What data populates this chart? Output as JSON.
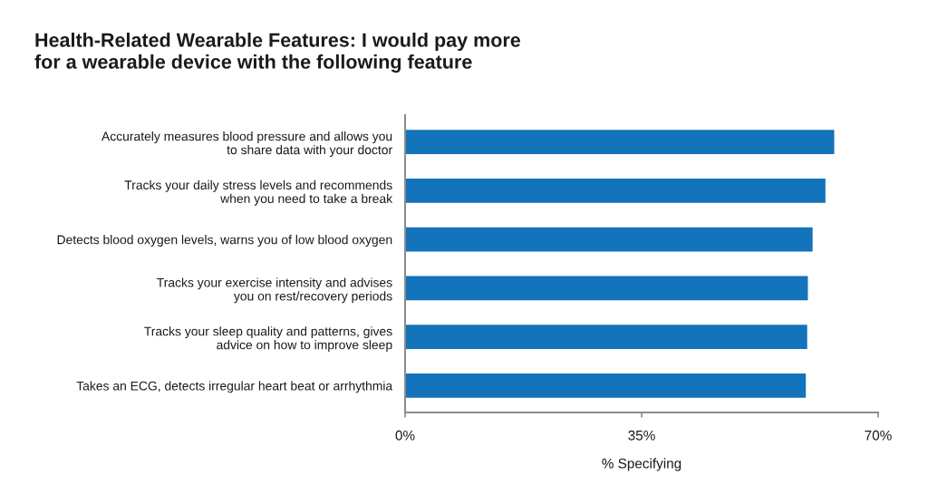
{
  "chart_data": {
    "type": "bar",
    "orientation": "horizontal",
    "title": "Health-Related Wearable Features: I would pay more\nfor a wearable device with the following feature",
    "xlabel": "% Specifying",
    "categories": [
      "Accurately measures blood pressure and allows you\nto share data with your doctor",
      "Tracks your daily stress levels and recommends\nwhen you need to take a break",
      "Detects blood oxygen levels, warns you of low blood oxygen",
      "Tracks your exercise intensity and advises\nyou on rest/recovery periods",
      "Tracks your sleep quality and patterns, gives\nadvice on how to improve sleep",
      "Takes an ECG, detects irregular heart beat or arrhythmia"
    ],
    "values": [
      63.5,
      62.2,
      60.3,
      59.6,
      59.5,
      59.3
    ],
    "color": "#1373bb",
    "xlim": [
      0,
      70
    ],
    "xticks": [
      {
        "value": 0,
        "label": "0%"
      },
      {
        "value": 35,
        "label": "35%"
      },
      {
        "value": 70,
        "label": "70%"
      }
    ]
  }
}
